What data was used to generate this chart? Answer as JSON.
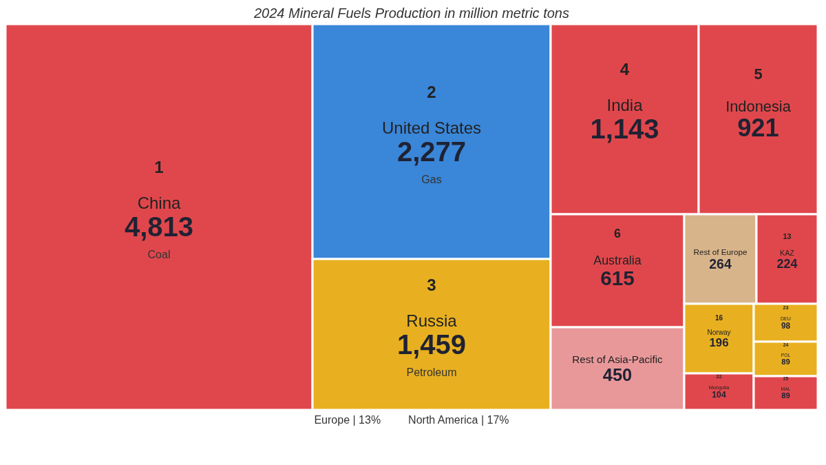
{
  "chart_data": {
    "type": "other",
    "title": "2024 Mineral Fuels Production in million metric tons",
    "categories": [
      "China",
      "United States",
      "Russia",
      "India",
      "Indonesia",
      "Australia",
      "Rest of Asia-Pacific",
      "Rest of Europe",
      "KAZ",
      "Norway",
      "Mongolia",
      "DEU",
      "POL",
      "MAL"
    ],
    "values": [
      4813,
      2277,
      1459,
      1143,
      921,
      615,
      450,
      264,
      224,
      196,
      104,
      98,
      89,
      89
    ],
    "value_labels": [
      "4,813",
      "2,277",
      "1,459",
      "1,143",
      "921",
      "615",
      "450",
      "264",
      "224",
      "196",
      "104",
      "98",
      "89",
      "89"
    ],
    "colors": [
      "#e0474c",
      "#3a86d8",
      "#e8b020",
      "#e0474c",
      "#e0474c",
      "#e0474c",
      "#e9989a",
      "#d8b48a",
      "#e0474c",
      "#e8b020",
      "#e0474c",
      "#e8b020",
      "#e8b020",
      "#e0474c"
    ],
    "annotations": [
      {
        "text": "1",
        "x": "China"
      },
      {
        "text": "2",
        "x": "United States"
      },
      {
        "text": "3",
        "x": "Russia"
      },
      {
        "text": "4",
        "x": "India"
      },
      {
        "text": "5",
        "x": "Indonesia"
      },
      {
        "text": "6",
        "x": "Australia"
      },
      {
        "text": "13",
        "x": "KAZ"
      },
      {
        "text": "16",
        "x": "Norway"
      },
      {
        "text": "22",
        "x": "Mongolia"
      },
      {
        "text": "23",
        "x": "DEU"
      },
      {
        "text": "24",
        "x": "POL"
      },
      {
        "text": "25",
        "x": "MAL"
      },
      {
        "text": "Coal",
        "x": "China"
      },
      {
        "text": "Gas",
        "x": "United States"
      },
      {
        "text": "Petroleum",
        "x": "Russia"
      },
      "Europe | 13%",
      "North America | 17%"
    ]
  }
}
